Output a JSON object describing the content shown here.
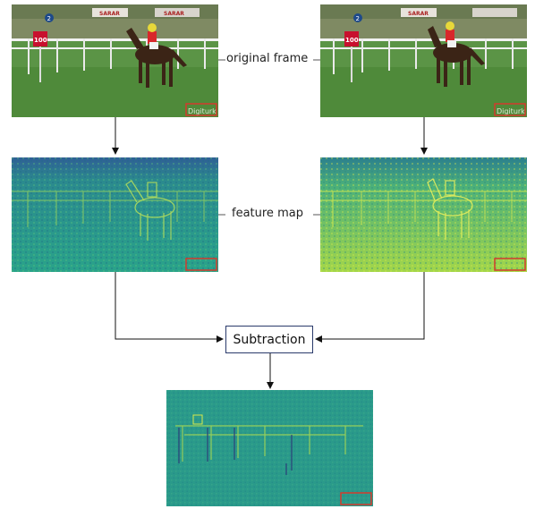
{
  "labels": {
    "original_frame": "original frame",
    "feature_map": "feature map",
    "subtraction": "Subtraction"
  },
  "watermark_text": "Digiturk",
  "race_number": "100",
  "post_number": "2",
  "banner_text": "SARAR",
  "colors": {
    "arrow": "#111111",
    "box_border": "#2a3a6b",
    "highlight_box": "#d33b2c"
  }
}
